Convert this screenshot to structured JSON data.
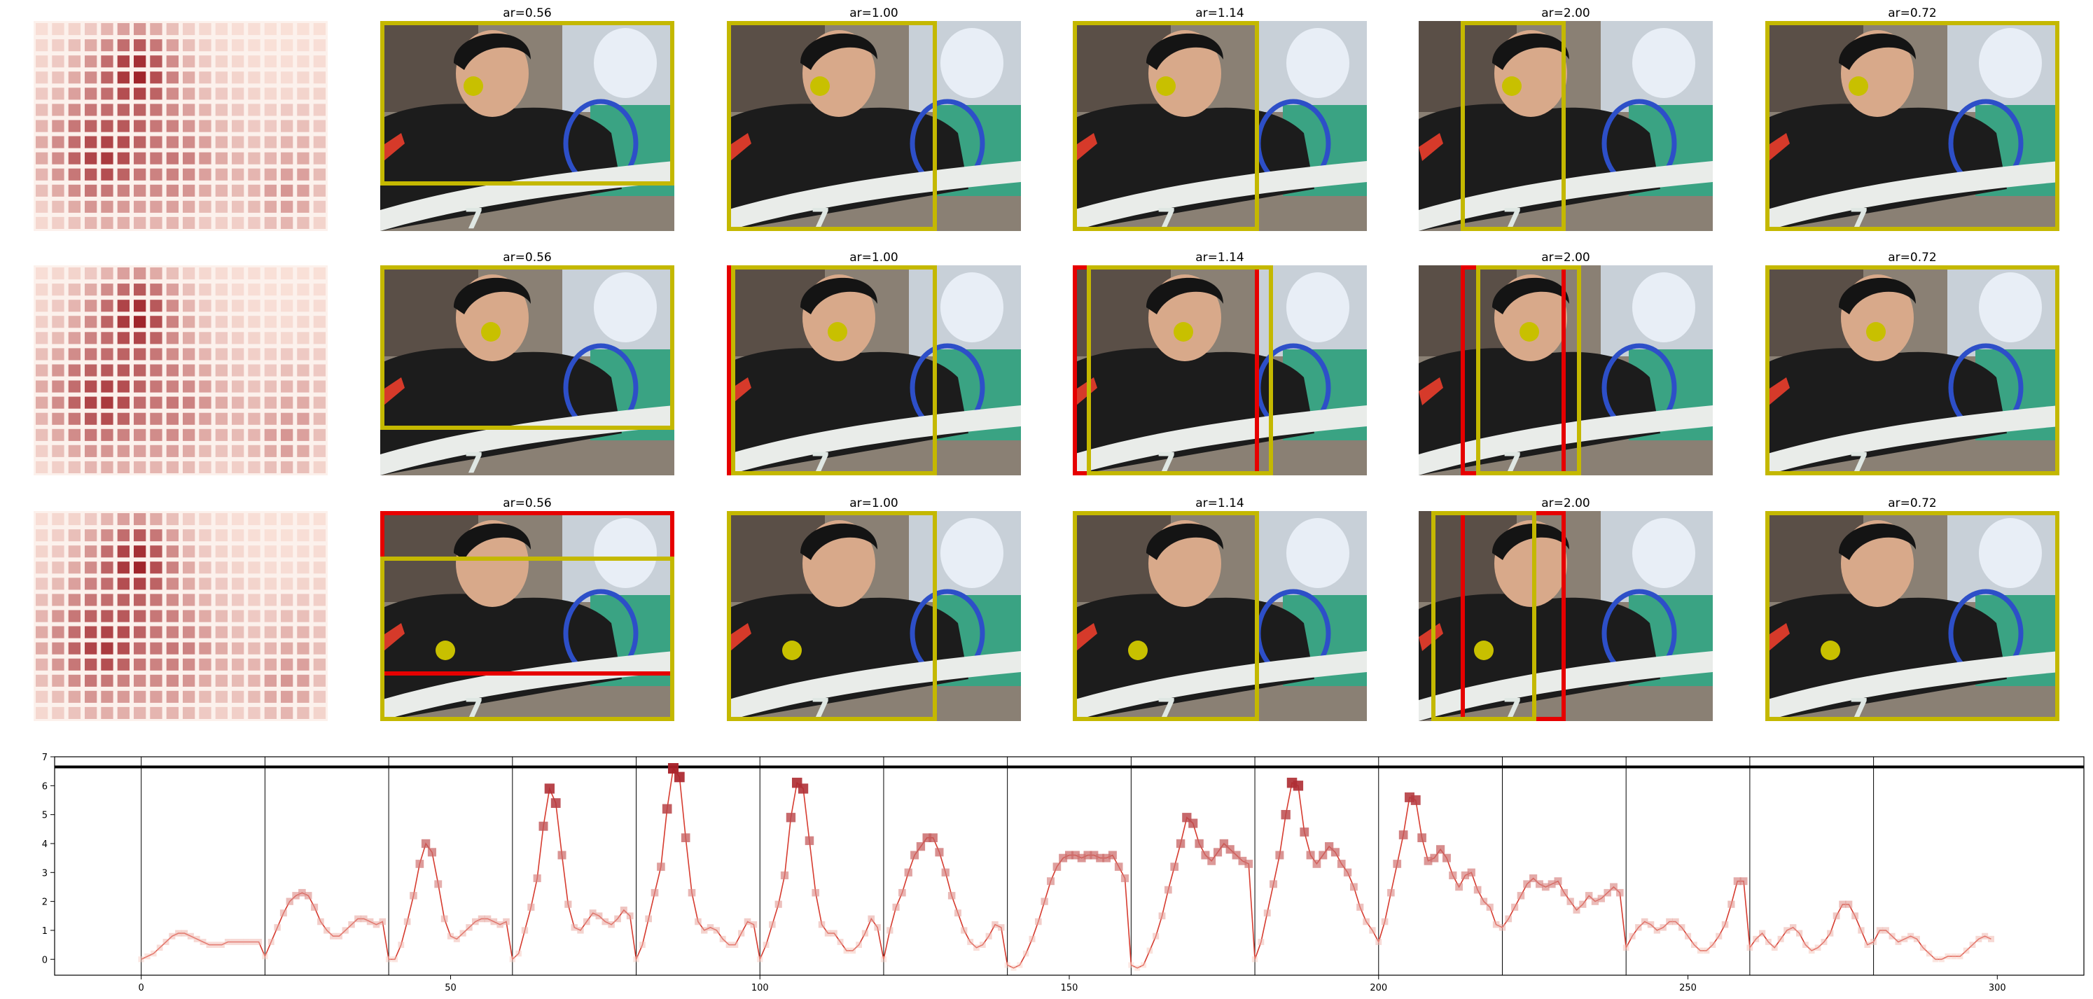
{
  "figure": {
    "panel_titles": [
      "ar=0.56",
      "ar=1.00",
      "ar=1.14",
      "ar=2.00",
      "ar=0.72"
    ],
    "colors": {
      "crop_box": "#c4b800",
      "alt_box": "#e60000",
      "marker_dot": "#c8c000",
      "heat_low": "#fde8df",
      "heat_high": "#9b1b22",
      "line": "#d63b2f",
      "axis": "#000000",
      "photo_green": "#3aa383",
      "shirt": "#1c1c1c"
    },
    "icons": {
      "photo": "badminton-player-photo",
      "heatmap": "saliency-heatmap"
    }
  },
  "chart_data": {
    "type": "line",
    "title": "",
    "xlabel": "",
    "ylabel": "",
    "xlim": [
      -14,
      314
    ],
    "ylim": [
      -0.55,
      7.0
    ],
    "xticks": [
      0,
      50,
      100,
      150,
      200,
      250,
      300
    ],
    "yticks": [
      0,
      1,
      2,
      3,
      4,
      5,
      6,
      7
    ],
    "vlines": [
      0,
      20,
      40,
      60,
      80,
      100,
      120,
      140,
      160,
      180,
      200,
      220,
      240,
      260,
      280
    ],
    "hline": 6.65,
    "marker": "square",
    "x_range": [
      0,
      299
    ],
    "y": [
      0.0,
      0.1,
      0.2,
      0.4,
      0.6,
      0.8,
      0.9,
      0.9,
      0.8,
      0.7,
      0.6,
      0.5,
      0.5,
      0.5,
      0.6,
      0.6,
      0.6,
      0.6,
      0.6,
      0.6,
      0.1,
      0.6,
      1.1,
      1.6,
      2.0,
      2.2,
      2.3,
      2.2,
      1.8,
      1.3,
      1.0,
      0.8,
      0.8,
      1.0,
      1.2,
      1.4,
      1.4,
      1.3,
      1.2,
      1.3,
      0.0,
      0.0,
      0.5,
      1.3,
      2.2,
      3.3,
      4.0,
      3.7,
      2.6,
      1.4,
      0.8,
      0.7,
      0.9,
      1.1,
      1.3,
      1.4,
      1.4,
      1.3,
      1.2,
      1.3,
      0.0,
      0.2,
      1.0,
      1.8,
      2.8,
      4.6,
      5.9,
      5.4,
      3.6,
      1.9,
      1.1,
      1.0,
      1.3,
      1.6,
      1.5,
      1.3,
      1.2,
      1.4,
      1.7,
      1.5,
      0.0,
      0.5,
      1.4,
      2.3,
      3.2,
      5.2,
      6.6,
      6.3,
      4.2,
      2.3,
      1.3,
      1.0,
      1.1,
      1.0,
      0.7,
      0.5,
      0.5,
      0.9,
      1.3,
      1.2,
      0.0,
      0.5,
      1.2,
      1.9,
      2.9,
      4.9,
      6.1,
      5.9,
      4.1,
      2.3,
      1.2,
      0.9,
      0.9,
      0.6,
      0.3,
      0.3,
      0.5,
      0.9,
      1.4,
      1.1,
      0.0,
      1.0,
      1.8,
      2.3,
      3.0,
      3.6,
      3.9,
      4.2,
      4.2,
      3.7,
      3.0,
      2.2,
      1.6,
      1.0,
      0.6,
      0.4,
      0.5,
      0.8,
      1.2,
      1.1,
      -0.2,
      -0.3,
      -0.2,
      0.2,
      0.7,
      1.3,
      2.0,
      2.7,
      3.2,
      3.5,
      3.6,
      3.6,
      3.5,
      3.6,
      3.6,
      3.5,
      3.5,
      3.6,
      3.2,
      2.8,
      -0.2,
      -0.3,
      -0.2,
      0.3,
      0.8,
      1.5,
      2.4,
      3.2,
      4.0,
      4.9,
      4.7,
      4.0,
      3.6,
      3.4,
      3.7,
      4.0,
      3.8,
      3.6,
      3.4,
      3.3,
      0.0,
      0.6,
      1.6,
      2.6,
      3.6,
      5.0,
      6.1,
      6.0,
      4.4,
      3.6,
      3.3,
      3.6,
      3.9,
      3.7,
      3.3,
      3.0,
      2.5,
      1.8,
      1.3,
      1.0,
      0.6,
      1.3,
      2.3,
      3.3,
      4.3,
      5.6,
      5.5,
      4.2,
      3.4,
      3.5,
      3.8,
      3.5,
      2.9,
      2.5,
      2.9,
      3.0,
      2.4,
      2.0,
      1.8,
      1.2,
      1.1,
      1.4,
      1.8,
      2.2,
      2.6,
      2.8,
      2.6,
      2.5,
      2.6,
      2.7,
      2.3,
      2.0,
      1.7,
      1.9,
      2.2,
      2.0,
      2.1,
      2.3,
      2.5,
      2.3,
      0.4,
      0.8,
      1.1,
      1.3,
      1.2,
      1.0,
      1.1,
      1.3,
      1.3,
      1.1,
      0.8,
      0.5,
      0.3,
      0.3,
      0.5,
      0.8,
      1.2,
      1.9,
      2.7,
      2.7,
      0.4,
      0.7,
      0.9,
      0.6,
      0.4,
      0.7,
      1.0,
      1.1,
      0.9,
      0.5,
      0.3,
      0.4,
      0.6,
      0.9,
      1.5,
      1.9,
      1.9,
      1.5,
      1.0,
      0.5,
      0.6,
      1.0,
      1.0,
      0.8,
      0.6,
      0.7,
      0.8,
      0.7,
      0.4,
      0.2,
      0.0,
      0.0,
      0.1,
      0.1,
      0.1,
      0.3,
      0.5,
      0.7,
      0.8,
      0.7
    ]
  }
}
